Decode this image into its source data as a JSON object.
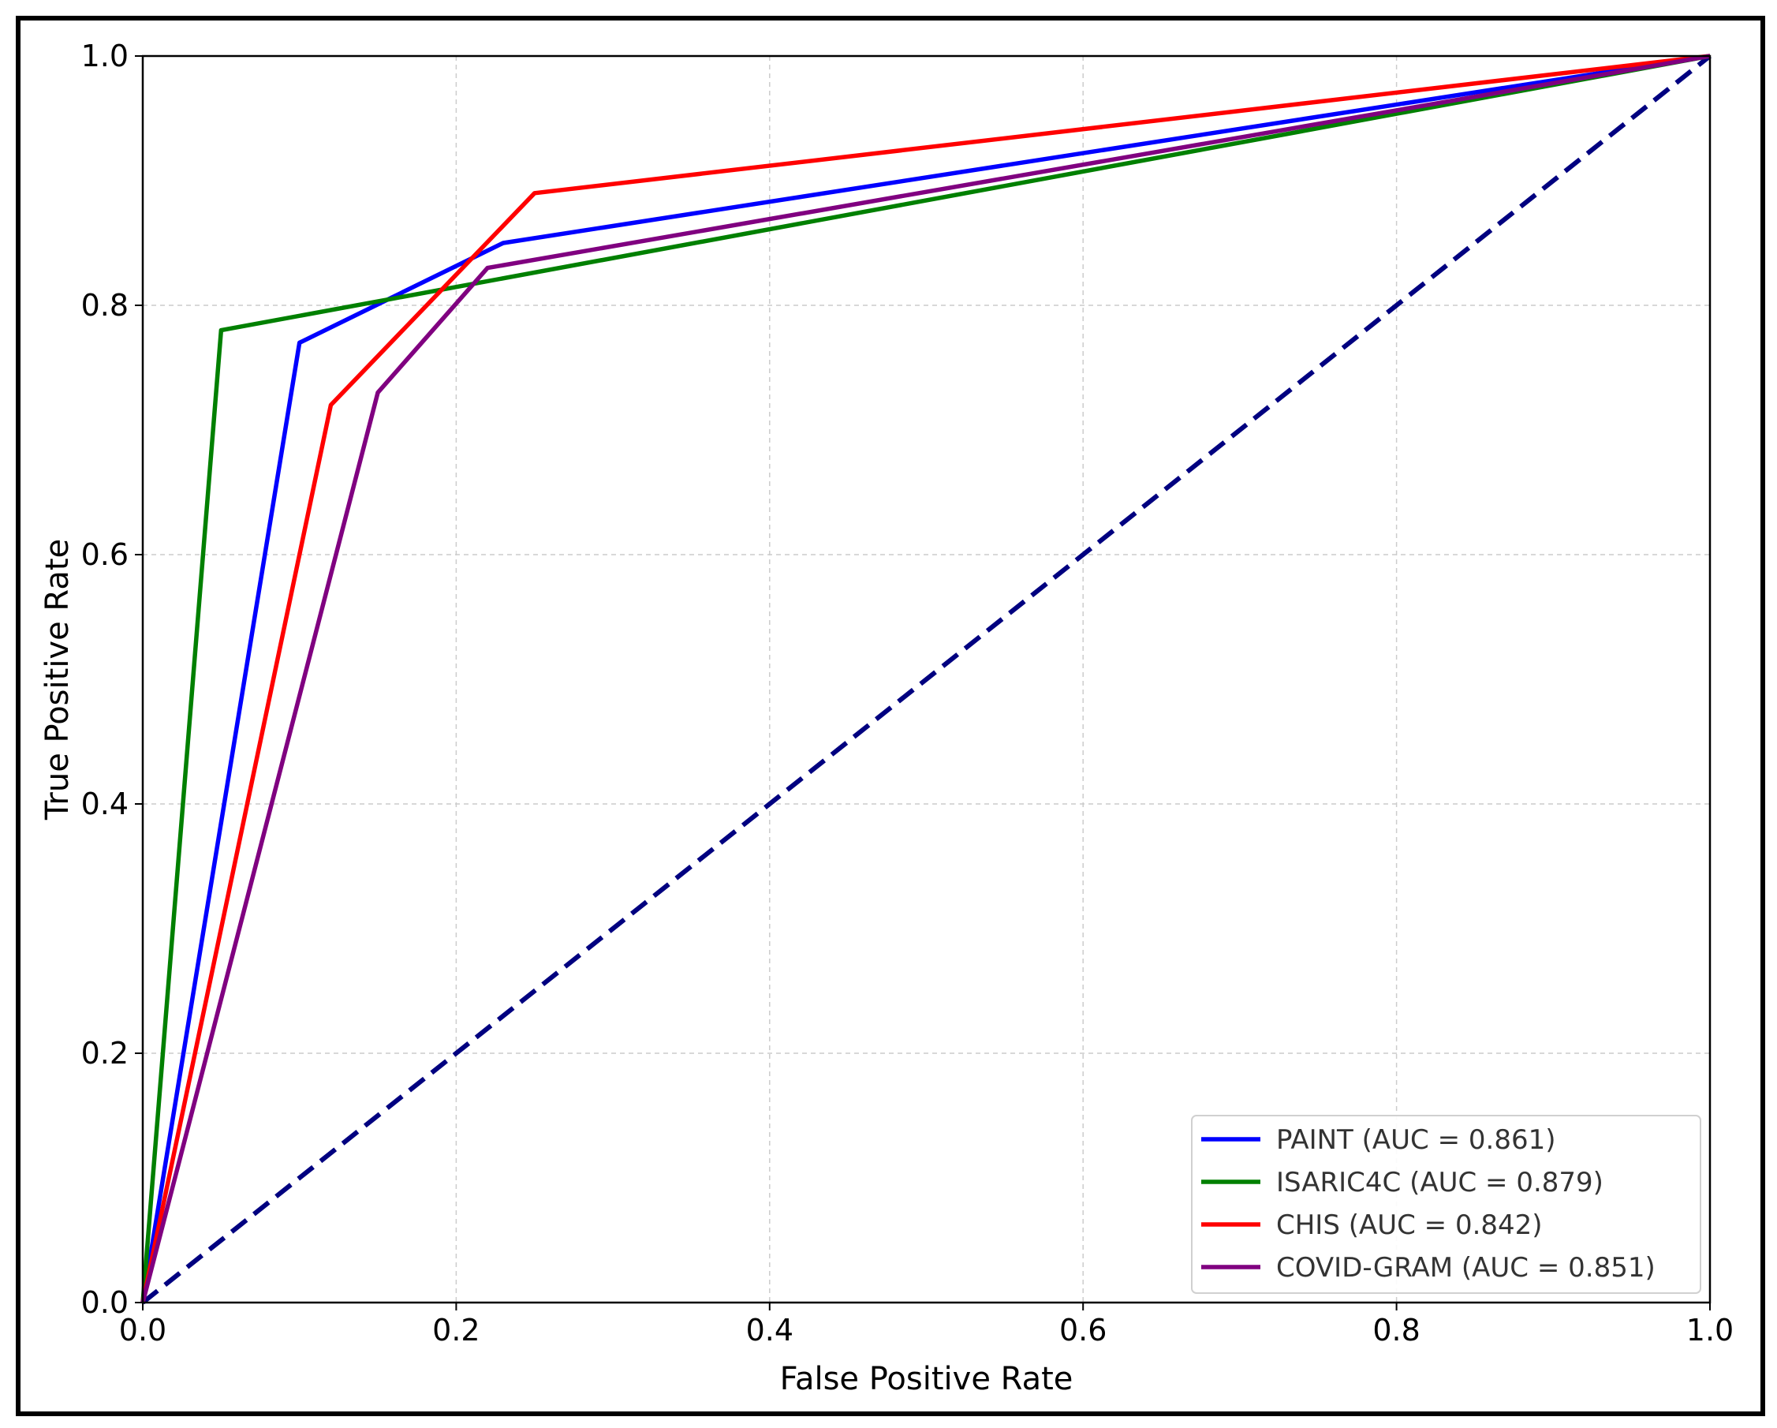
{
  "chart_data": {
    "type": "line",
    "title": "",
    "xlabel": "False Positive Rate",
    "ylabel": "True Positive Rate",
    "xlim": [
      0.0,
      1.0
    ],
    "ylim": [
      0.0,
      1.0
    ],
    "xticks": [
      "0.0",
      "0.2",
      "0.4",
      "0.6",
      "0.8",
      "1.0"
    ],
    "yticks": [
      "0.0",
      "0.2",
      "0.4",
      "0.6",
      "0.8",
      "1.0"
    ],
    "grid": true,
    "legend_position": "lower-right",
    "series": [
      {
        "name": "PAINT",
        "label": "PAINT (AUC = 0.861)",
        "color": "#0000ff",
        "x": [
          0.0,
          0.1,
          0.23,
          1.0
        ],
        "y": [
          0.0,
          0.77,
          0.85,
          1.0
        ]
      },
      {
        "name": "ISARIC4C",
        "label": "ISARIC4C (AUC = 0.879)",
        "color": "#008000",
        "x": [
          0.0,
          0.05,
          1.0
        ],
        "y": [
          0.0,
          0.78,
          1.0
        ]
      },
      {
        "name": "CHIS",
        "label": "CHIS (AUC = 0.842)",
        "color": "#ff0000",
        "x": [
          0.0,
          0.12,
          0.25,
          1.0
        ],
        "y": [
          0.0,
          0.72,
          0.89,
          1.0
        ]
      },
      {
        "name": "COVID-GRAM",
        "label": "COVID-GRAM (AUC = 0.851)",
        "color": "#800080",
        "x": [
          0.0,
          0.15,
          0.22,
          1.0
        ],
        "y": [
          0.0,
          0.73,
          0.83,
          1.0
        ]
      }
    ],
    "reference_line": {
      "x": [
        0.0,
        1.0
      ],
      "y": [
        0.0,
        1.0
      ],
      "color": "#000080",
      "style": "dashed"
    }
  }
}
